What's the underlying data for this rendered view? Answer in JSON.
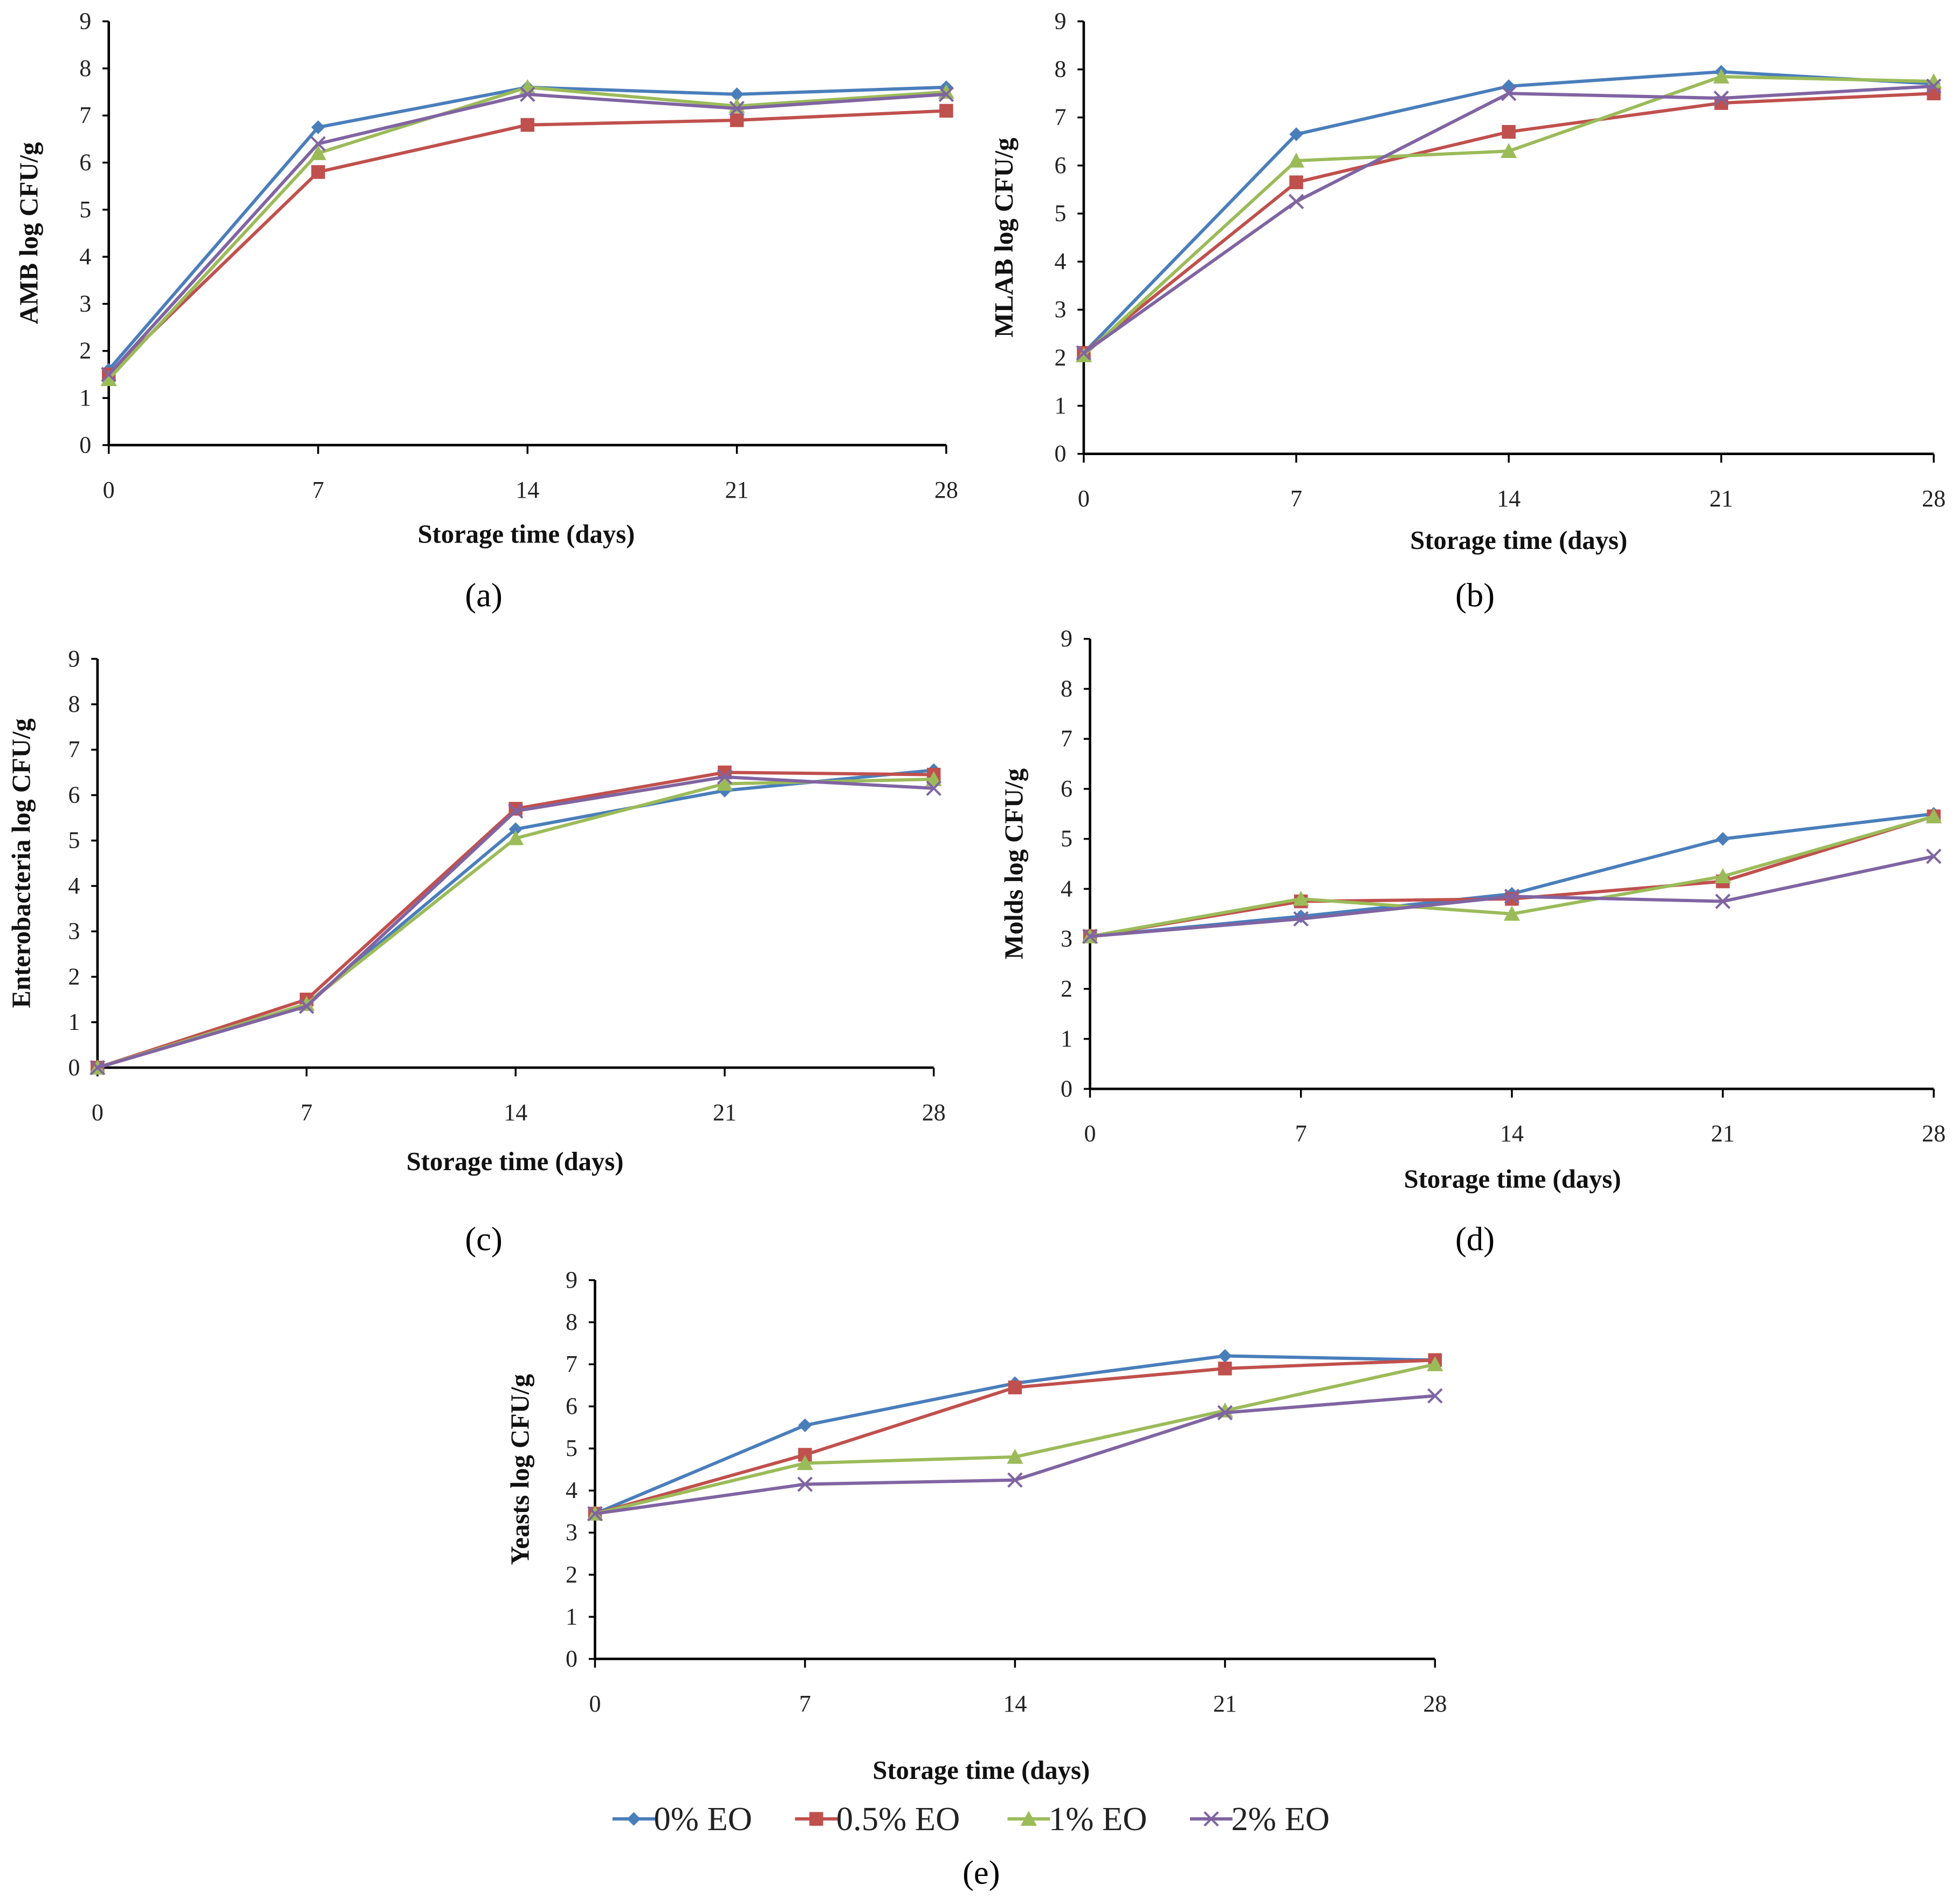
{
  "legend": [
    {
      "label": "0% EO",
      "color": "#4a7ebb",
      "marker": "diamond"
    },
    {
      "label": "0.5% EO",
      "color": "#c0504d",
      "marker": "square"
    },
    {
      "label": "1% EO",
      "color": "#9bbb59",
      "marker": "triangle"
    },
    {
      "label": "2% EO",
      "color": "#8064a2",
      "marker": "x"
    }
  ],
  "chart_data": [
    {
      "type": "line",
      "panel": "a",
      "ylabel": "AMB log CFU/g",
      "xlabel": "Storage time  (days)",
      "x": [
        0,
        7,
        14,
        21,
        28
      ],
      "ylim": [
        0,
        9
      ],
      "yticks": [
        0,
        1,
        2,
        3,
        4,
        5,
        6,
        7,
        8,
        9
      ],
      "series": [
        {
          "name": "0% EO",
          "values": [
            1.6,
            6.75,
            7.6,
            7.45,
            7.6
          ]
        },
        {
          "name": "0.5% EO",
          "values": [
            1.5,
            5.8,
            6.8,
            6.9,
            7.1
          ]
        },
        {
          "name": "1% EO",
          "values": [
            1.4,
            6.2,
            7.6,
            7.2,
            7.5
          ]
        },
        {
          "name": "2% EO",
          "values": [
            1.5,
            6.4,
            7.45,
            7.15,
            7.45
          ]
        }
      ]
    },
    {
      "type": "line",
      "panel": "b",
      "ylabel": "MLAB log CFU/g",
      "xlabel": "Storage time  (days)",
      "x": [
        0,
        7,
        14,
        21,
        28
      ],
      "ylim": [
        0,
        9
      ],
      "yticks": [
        0,
        1,
        2,
        3,
        4,
        5,
        6,
        7,
        8,
        9
      ],
      "series": [
        {
          "name": "0% EO",
          "values": [
            2.1,
            6.65,
            7.65,
            7.95,
            7.7
          ]
        },
        {
          "name": "0.5% EO",
          "values": [
            2.1,
            5.65,
            6.7,
            7.3,
            7.5
          ]
        },
        {
          "name": "1% EO",
          "values": [
            2.05,
            6.1,
            6.3,
            7.85,
            7.75
          ]
        },
        {
          "name": "2% EO",
          "values": [
            2.1,
            5.25,
            7.5,
            7.4,
            7.65
          ]
        }
      ]
    },
    {
      "type": "line",
      "panel": "c",
      "ylabel": "Enterobacteria  log CFU/g",
      "xlabel": "Storage time  (days)",
      "x": [
        0,
        7,
        14,
        21,
        28
      ],
      "ylim": [
        0,
        9
      ],
      "yticks": [
        0,
        1,
        2,
        3,
        4,
        5,
        6,
        7,
        8,
        9
      ],
      "series": [
        {
          "name": "0% EO",
          "values": [
            0,
            1.4,
            5.25,
            6.1,
            6.55
          ]
        },
        {
          "name": "0.5% EO",
          "values": [
            0,
            1.5,
            5.7,
            6.5,
            6.45
          ]
        },
        {
          "name": "1% EO",
          "values": [
            0,
            1.4,
            5.05,
            6.25,
            6.35
          ]
        },
        {
          "name": "2% EO",
          "values": [
            0,
            1.35,
            5.65,
            6.4,
            6.15
          ]
        }
      ]
    },
    {
      "type": "line",
      "panel": "d",
      "ylabel": "Molds log  CFU/g",
      "xlabel": "Storage time  (days)",
      "x": [
        0,
        7,
        14,
        21,
        28
      ],
      "ylim": [
        0,
        9
      ],
      "yticks": [
        0,
        1,
        2,
        3,
        4,
        5,
        6,
        7,
        8,
        9
      ],
      "series": [
        {
          "name": "0% EO",
          "values": [
            3.05,
            3.45,
            3.9,
            5.0,
            5.5
          ]
        },
        {
          "name": "0.5% EO",
          "values": [
            3.05,
            3.75,
            3.8,
            4.15,
            5.45
          ]
        },
        {
          "name": "1% EO",
          "values": [
            3.05,
            3.8,
            3.5,
            4.25,
            5.45
          ]
        },
        {
          "name": "2% EO",
          "values": [
            3.05,
            3.4,
            3.85,
            3.75,
            4.65
          ]
        }
      ]
    },
    {
      "type": "line",
      "panel": "e",
      "ylabel": "Yeasts log CFU/g",
      "xlabel": "Storage time  (days)",
      "x": [
        0,
        7,
        14,
        21,
        28
      ],
      "ylim": [
        0,
        9
      ],
      "yticks": [
        0,
        1,
        2,
        3,
        4,
        5,
        6,
        7,
        8,
        9
      ],
      "series": [
        {
          "name": "0% EO",
          "values": [
            3.45,
            5.55,
            6.55,
            7.2,
            7.1
          ]
        },
        {
          "name": "0.5% EO",
          "values": [
            3.45,
            4.85,
            6.45,
            6.9,
            7.1
          ]
        },
        {
          "name": "1% EO",
          "values": [
            3.45,
            4.65,
            4.8,
            5.9,
            7.0
          ]
        },
        {
          "name": "2% EO",
          "values": [
            3.45,
            4.15,
            4.25,
            5.85,
            6.25
          ]
        }
      ]
    }
  ],
  "panel_labels": [
    "(a)",
    "(b)",
    "(c)",
    "(d)",
    "(e)"
  ]
}
